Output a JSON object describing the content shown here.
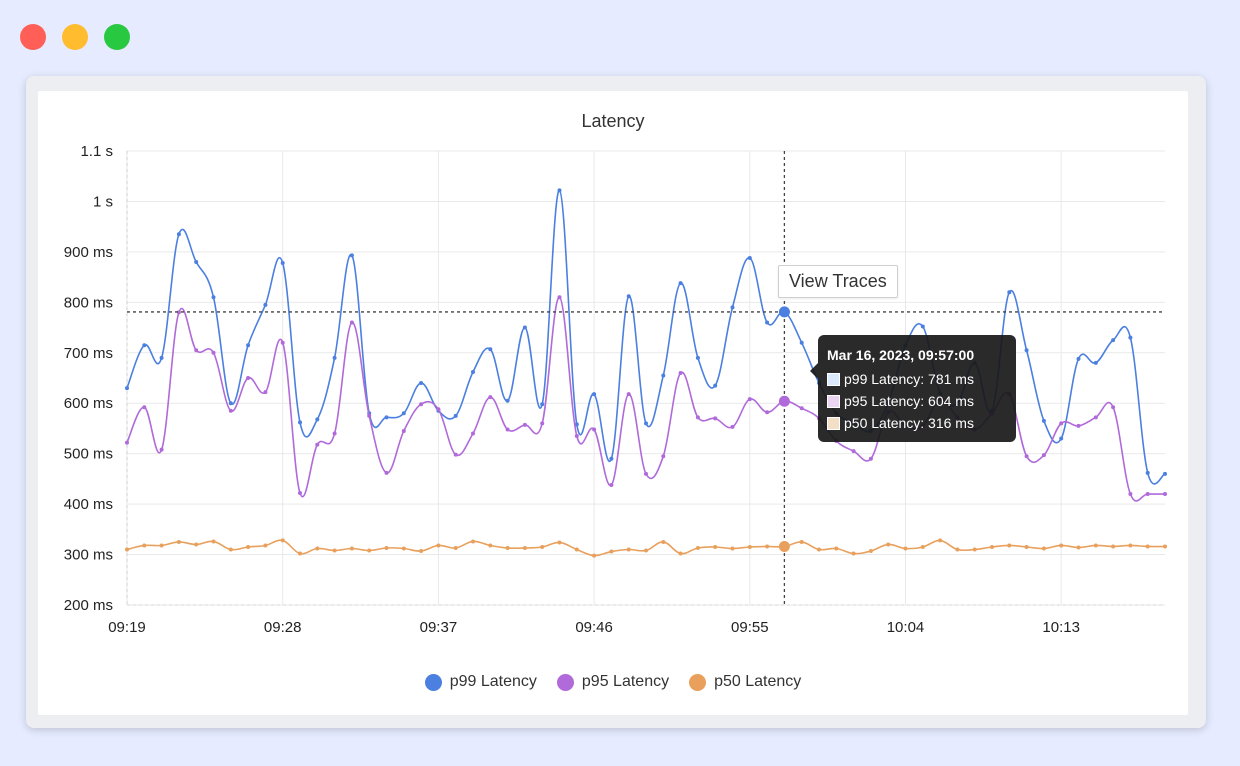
{
  "window_controls": {
    "close": "#ff5f57",
    "minimize": "#febc2e",
    "maximize": "#28c840"
  },
  "view_traces_label": "View Traces",
  "tooltip": {
    "title": "Mar 16, 2023, 09:57:00",
    "rows": [
      {
        "label": "p99 Latency: 781 ms",
        "color": "#dce8fb"
      },
      {
        "label": "p95 Latency: 604 ms",
        "color": "#e9d4f2"
      },
      {
        "label": "p50 Latency: 316 ms",
        "color": "#f3dec8"
      }
    ]
  },
  "chart_data": {
    "type": "line",
    "title": "Latency",
    "xlabel": "",
    "ylabel": "",
    "y_unit": "ms",
    "ylim": [
      200,
      1100
    ],
    "yticks": [
      {
        "value": 200,
        "label": "200 ms"
      },
      {
        "value": 300,
        "label": "300 ms"
      },
      {
        "value": 400,
        "label": "400 ms"
      },
      {
        "value": 500,
        "label": "500 ms"
      },
      {
        "value": 600,
        "label": "600 ms"
      },
      {
        "value": 700,
        "label": "700 ms"
      },
      {
        "value": 800,
        "label": "800 ms"
      },
      {
        "value": 900,
        "label": "900 ms"
      },
      {
        "value": 1000,
        "label": "1 s"
      },
      {
        "value": 1100,
        "label": "1.1 s"
      }
    ],
    "xlim": [
      "09:19",
      "10:19"
    ],
    "xticks": [
      "09:19",
      "09:28",
      "09:37",
      "09:46",
      "09:55",
      "10:04",
      "10:13"
    ],
    "x": [
      "09:19",
      "09:20",
      "09:21",
      "09:22",
      "09:23",
      "09:24",
      "09:25",
      "09:26",
      "09:27",
      "09:28",
      "09:29",
      "09:30",
      "09:31",
      "09:32",
      "09:33",
      "09:34",
      "09:35",
      "09:36",
      "09:37",
      "09:38",
      "09:39",
      "09:40",
      "09:41",
      "09:42",
      "09:43",
      "09:44",
      "09:45",
      "09:46",
      "09:47",
      "09:48",
      "09:49",
      "09:50",
      "09:51",
      "09:52",
      "09:53",
      "09:54",
      "09:55",
      "09:56",
      "09:57",
      "09:58",
      "09:59",
      "10:00",
      "10:01",
      "10:02",
      "10:03",
      "10:04",
      "10:05",
      "10:06",
      "10:07",
      "10:08",
      "10:09",
      "10:10",
      "10:11",
      "10:12",
      "10:13",
      "10:14",
      "10:15",
      "10:16",
      "10:17",
      "10:18",
      "10:19"
    ],
    "series": [
      {
        "name": "p99 Latency",
        "color": "#4b7fe0",
        "values": [
          630,
          715,
          690,
          935,
          880,
          810,
          600,
          715,
          795,
          878,
          562,
          568,
          690,
          893,
          580,
          572,
          580,
          640,
          585,
          575,
          662,
          707,
          605,
          750,
          598,
          1022,
          558,
          618,
          490,
          812,
          560,
          655,
          838,
          690,
          635,
          790,
          888,
          760,
          781,
          720,
          640,
          580,
          562,
          545,
          600,
          715,
          752,
          620,
          600,
          680,
          585,
          820,
          705,
          565,
          530,
          688,
          680,
          725,
          730,
          462,
          460
        ]
      },
      {
        "name": "p95 Latency",
        "color": "#b06ad9",
        "values": [
          522,
          592,
          508,
          780,
          705,
          700,
          585,
          650,
          622,
          720,
          422,
          518,
          540,
          760,
          575,
          462,
          545,
          598,
          588,
          498,
          540,
          612,
          548,
          557,
          560,
          810,
          535,
          548,
          438,
          618,
          460,
          495,
          660,
          572,
          570,
          553,
          608,
          582,
          604,
          590,
          570,
          525,
          505,
          490,
          582,
          555,
          555,
          608,
          572,
          548,
          580,
          618,
          495,
          497,
          560,
          555,
          572,
          592,
          420,
          420,
          420
        ]
      },
      {
        "name": "p50 Latency",
        "color": "#e8a05c",
        "values": [
          310,
          318,
          318,
          325,
          320,
          326,
          310,
          315,
          318,
          328,
          302,
          312,
          308,
          312,
          308,
          313,
          312,
          307,
          318,
          313,
          326,
          318,
          313,
          313,
          315,
          324,
          310,
          298,
          306,
          310,
          308,
          325,
          302,
          313,
          315,
          312,
          315,
          316,
          316,
          325,
          310,
          312,
          302,
          307,
          320,
          312,
          315,
          328,
          310,
          310,
          315,
          318,
          315,
          312,
          318,
          314,
          318,
          316,
          318,
          316,
          316
        ]
      }
    ],
    "crosshair": {
      "x": "09:57",
      "y": 781
    },
    "grid": true,
    "legend_placement": "bottom-center"
  }
}
